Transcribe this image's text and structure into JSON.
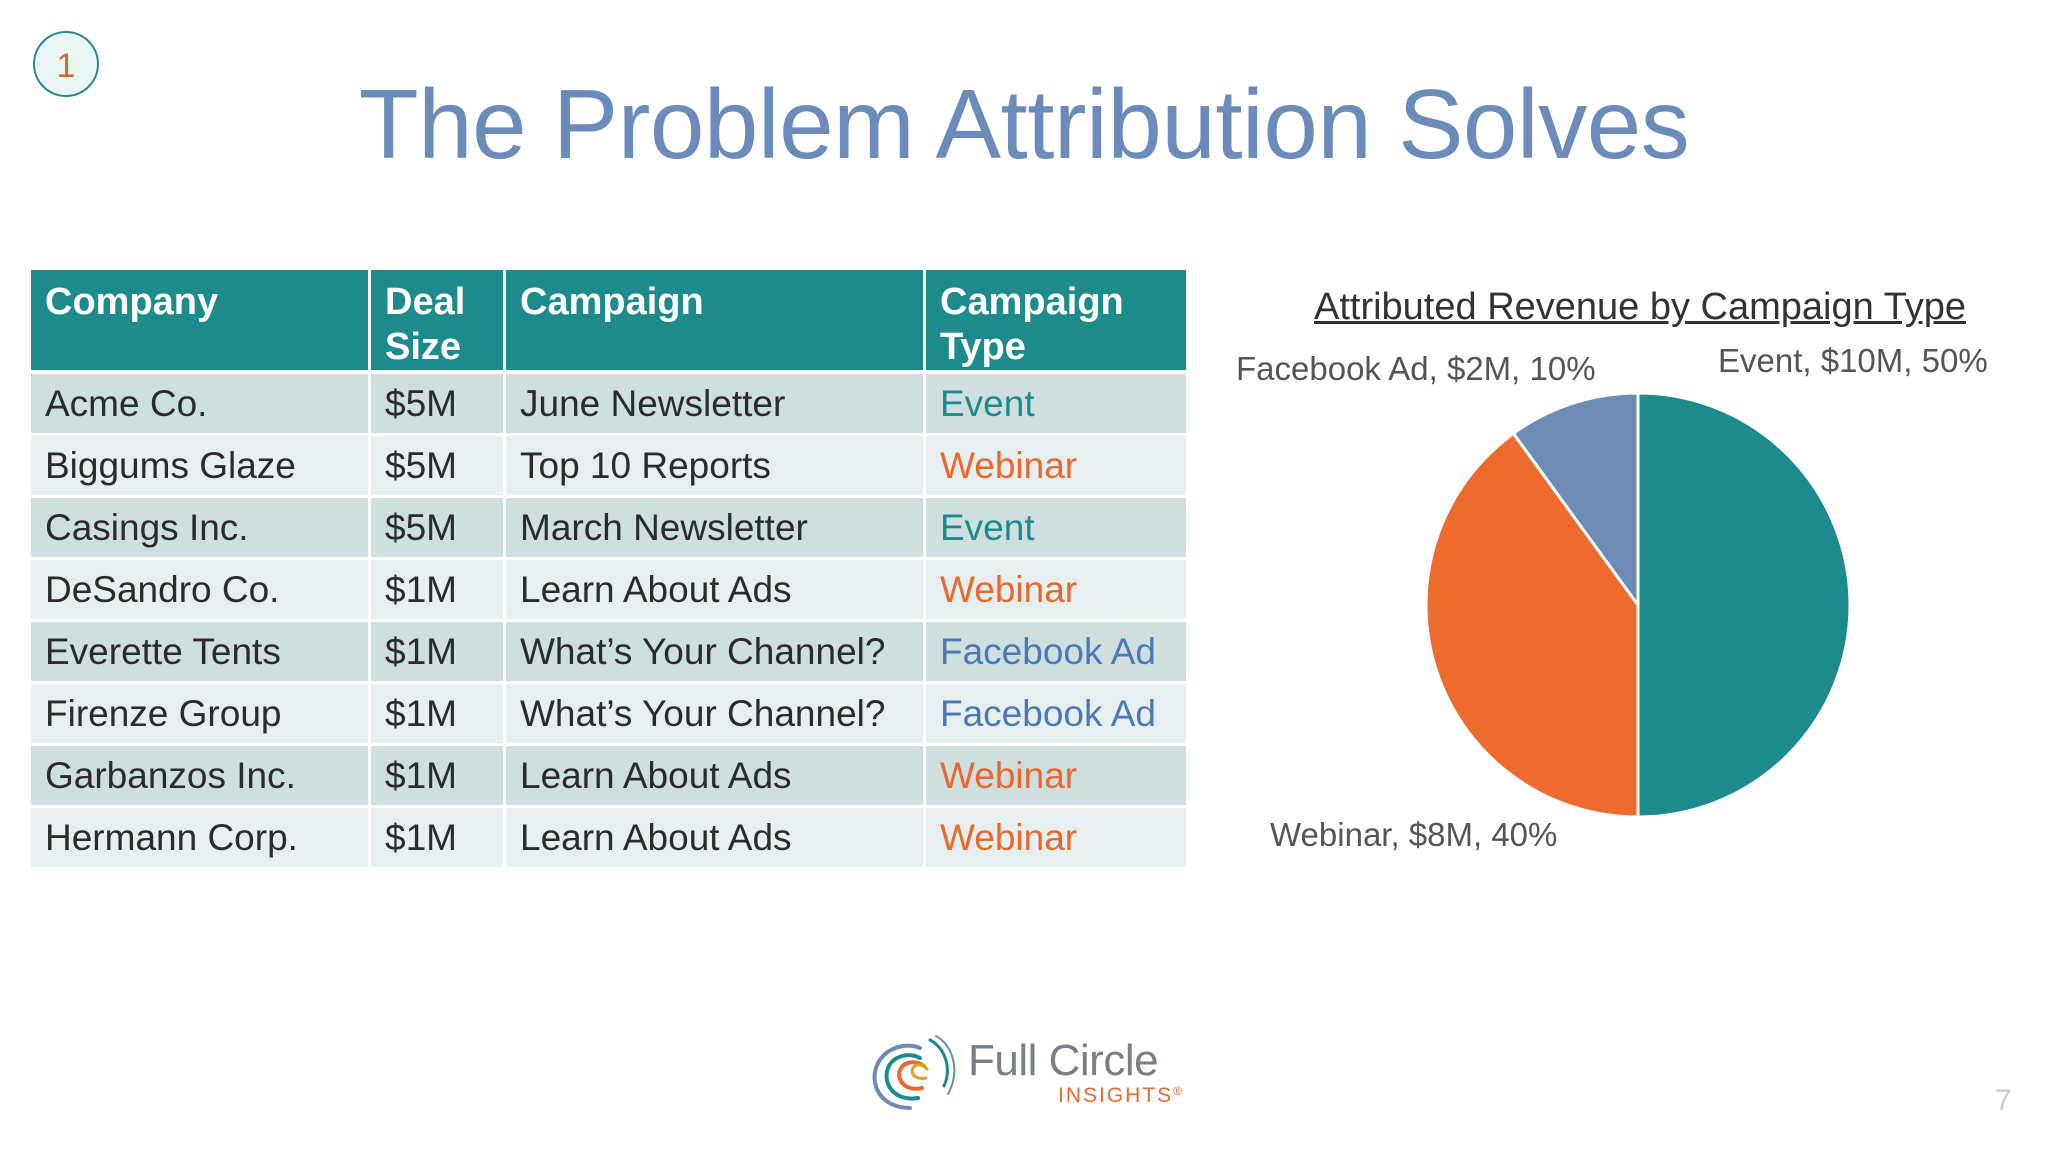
{
  "slide": {
    "step_number": "1",
    "title": "The Problem Attribution Solves",
    "page_number": "7"
  },
  "table": {
    "headers": {
      "company": "Company",
      "deal_size_line1": "Deal",
      "deal_size_line2": "Size",
      "campaign": "Campaign",
      "campaign_type_line1": "Campaign",
      "campaign_type_line2": "Type"
    },
    "rows": [
      {
        "company": "Acme Co.",
        "deal_size": "$5M",
        "campaign": "June Newsletter",
        "campaign_type": "Event"
      },
      {
        "company": "Biggums Glaze",
        "deal_size": "$5M",
        "campaign": "Top 10 Reports",
        "campaign_type": "Webinar"
      },
      {
        "company": "Casings Inc.",
        "deal_size": "$5M",
        "campaign": "March Newsletter",
        "campaign_type": "Event"
      },
      {
        "company": "DeSandro Co.",
        "deal_size": "$1M",
        "campaign": "Learn About Ads",
        "campaign_type": "Webinar"
      },
      {
        "company": "Everette Tents",
        "deal_size": "$1M",
        "campaign": "What’s Your Channel?",
        "campaign_type": "Facebook Ad"
      },
      {
        "company": "Firenze Group",
        "deal_size": "$1M",
        "campaign": "What’s Your Channel?",
        "campaign_type": "Facebook Ad"
      },
      {
        "company": "Garbanzos Inc.",
        "deal_size": "$1M",
        "campaign": "Learn About Ads",
        "campaign_type": "Webinar"
      },
      {
        "company": "Hermann Corp.",
        "deal_size": "$1M",
        "campaign": "Learn About Ads",
        "campaign_type": "Webinar"
      }
    ]
  },
  "chart_data": {
    "type": "pie",
    "title": "Attributed Revenue by Campaign Type",
    "slices": [
      {
        "label": "Event",
        "value": 10,
        "percent": 50,
        "data_label": "Event, $10M, 50%",
        "color": "#1d8a8c"
      },
      {
        "label": "Webinar",
        "value": 8,
        "percent": 40,
        "data_label": "Webinar, $8M, 40%",
        "color": "#ec6b2d"
      },
      {
        "label": "Facebook Ad",
        "value": 2,
        "percent": 10,
        "data_label": "Facebook Ad, $2M, 10%",
        "color": "#6c8bb5"
      }
    ],
    "start_angle_deg": 0,
    "direction": "clockwise",
    "legend": "none"
  },
  "colors": {
    "title": "#6b8cba",
    "header_bg": "#1d8a8c",
    "row_odd": "#cfdfe0",
    "row_even": "#e8eff0",
    "event": "#1d8a8c",
    "webinar": "#e8692b",
    "facebook_ad": "#4a7ab5"
  },
  "logo": {
    "name": "Full Circle",
    "tagline": "INSIGHTS",
    "registered_mark": "®",
    "icon": "swirl-logo-icon"
  }
}
